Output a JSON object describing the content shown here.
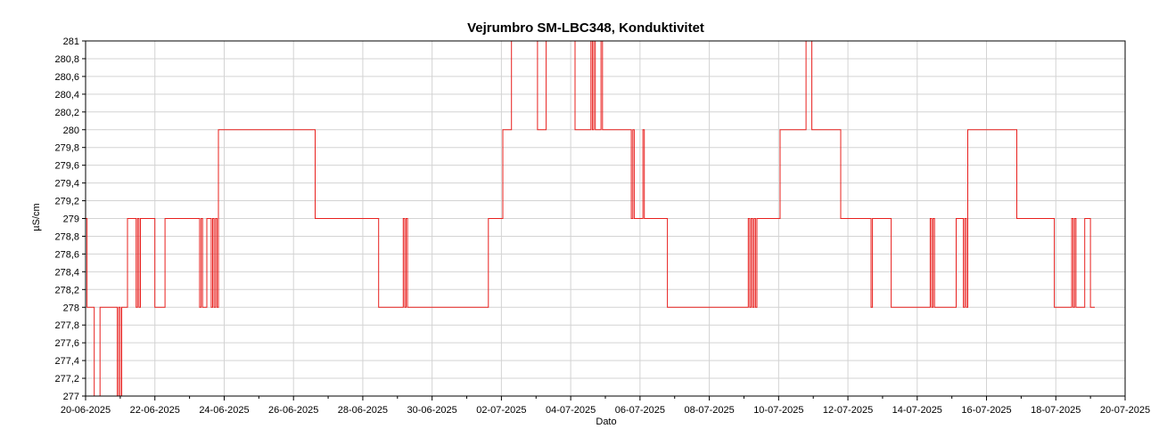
{
  "chart_data": {
    "type": "line",
    "title": "Vejrumbro SM-LBC348, Konduktivitet",
    "xlabel": "Dato",
    "ylabel": "µS/cm",
    "ylim": [
      277,
      281
    ],
    "xlim": [
      "2025-06-20T00:00",
      "2025-07-20T00:00"
    ],
    "x_ticks": [
      "20-06-2025",
      "22-06-2025",
      "24-06-2025",
      "26-06-2025",
      "28-06-2025",
      "30-06-2025",
      "02-07-2025",
      "04-07-2025",
      "06-07-2025",
      "08-07-2025",
      "10-07-2025",
      "12-07-2025",
      "14-07-2025",
      "16-07-2025",
      "18-07-2025",
      "20-07-2025"
    ],
    "y_ticks": [
      "277",
      "277,2",
      "277,4",
      "277,6",
      "277,8",
      "278",
      "278,2",
      "278,4",
      "278,6",
      "278,8",
      "279",
      "279,2",
      "279,4",
      "279,6",
      "279,8",
      "280",
      "280,2",
      "280,4",
      "280,6",
      "280,8",
      "281"
    ],
    "grid": true,
    "colors": {
      "series": "#e8201e",
      "grid": "#d3d3d3",
      "axis": "#000000"
    },
    "series": [
      {
        "points": [
          [
            "2025-06-20T00:00",
            279
          ],
          [
            "2025-06-20T01:00",
            278
          ],
          [
            "2025-06-20T05:00",
            278
          ],
          [
            "2025-06-20T06:00",
            277
          ],
          [
            "2025-06-20T09:00",
            277
          ],
          [
            "2025-06-20T10:00",
            278
          ],
          [
            "2025-06-20T21:00",
            278
          ],
          [
            "2025-06-20T22:00",
            277
          ],
          [
            "2025-06-20T23:00",
            278
          ],
          [
            "2025-06-21T00:00",
            277
          ],
          [
            "2025-06-21T01:00",
            278
          ],
          [
            "2025-06-21T04:00",
            278
          ],
          [
            "2025-06-21T05:00",
            279
          ],
          [
            "2025-06-21T10:00",
            279
          ],
          [
            "2025-06-21T11:00",
            278
          ],
          [
            "2025-06-21T12:00",
            279
          ],
          [
            "2025-06-21T13:00",
            278
          ],
          [
            "2025-06-21T14:00",
            279
          ],
          [
            "2025-06-21T23:00",
            279
          ],
          [
            "2025-06-22T00:00",
            278
          ],
          [
            "2025-06-22T06:00",
            278
          ],
          [
            "2025-06-22T07:00",
            279
          ],
          [
            "2025-06-23T06:00",
            279
          ],
          [
            "2025-06-23T07:00",
            278
          ],
          [
            "2025-06-23T08:00",
            279
          ],
          [
            "2025-06-23T09:00",
            278
          ],
          [
            "2025-06-23T11:00",
            278
          ],
          [
            "2025-06-23T12:00",
            279
          ],
          [
            "2025-06-23T14:00",
            279
          ],
          [
            "2025-06-23T15:00",
            278
          ],
          [
            "2025-06-23T16:00",
            279
          ],
          [
            "2025-06-23T17:00",
            278
          ],
          [
            "2025-06-23T18:00",
            279
          ],
          [
            "2025-06-23T19:00",
            278
          ],
          [
            "2025-06-23T20:00",
            280
          ],
          [
            "2025-06-26T14:00",
            280
          ],
          [
            "2025-06-26T15:00",
            279
          ],
          [
            "2025-06-28T10:00",
            279
          ],
          [
            "2025-06-28T11:00",
            278
          ],
          [
            "2025-06-29T03:00",
            278
          ],
          [
            "2025-06-29T04:00",
            279
          ],
          [
            "2025-06-29T05:00",
            278
          ],
          [
            "2025-06-29T06:00",
            279
          ],
          [
            "2025-06-29T07:00",
            278
          ],
          [
            "2025-07-01T14:00",
            278
          ],
          [
            "2025-07-01T15:00",
            279
          ],
          [
            "2025-07-02T00:00",
            279
          ],
          [
            "2025-07-02T01:00",
            280
          ],
          [
            "2025-07-02T06:00",
            280
          ],
          [
            "2025-07-02T07:00",
            281
          ],
          [
            "2025-07-03T00:00",
            281
          ],
          [
            "2025-07-03T01:00",
            280
          ],
          [
            "2025-07-03T06:00",
            280
          ],
          [
            "2025-07-03T07:00",
            281
          ],
          [
            "2025-07-04T02:00",
            281
          ],
          [
            "2025-07-04T03:00",
            280
          ],
          [
            "2025-07-04T13:00",
            280
          ],
          [
            "2025-07-04T14:00",
            281
          ],
          [
            "2025-07-04T15:00",
            280
          ],
          [
            "2025-07-04T16:00",
            281
          ],
          [
            "2025-07-04T17:00",
            280
          ],
          [
            "2025-07-04T20:00",
            280
          ],
          [
            "2025-07-04T21:00",
            281
          ],
          [
            "2025-07-04T22:00",
            280
          ],
          [
            "2025-07-05T17:00",
            280
          ],
          [
            "2025-07-05T18:00",
            279
          ],
          [
            "2025-07-05T19:00",
            280
          ],
          [
            "2025-07-05T20:00",
            279
          ],
          [
            "2025-07-06T01:00",
            279
          ],
          [
            "2025-07-06T02:00",
            280
          ],
          [
            "2025-07-06T03:00",
            279
          ],
          [
            "2025-07-06T18:00",
            279
          ],
          [
            "2025-07-06T19:00",
            278
          ],
          [
            "2025-07-09T02:00",
            278
          ],
          [
            "2025-07-09T03:00",
            279
          ],
          [
            "2025-07-09T04:00",
            278
          ],
          [
            "2025-07-09T05:00",
            279
          ],
          [
            "2025-07-09T06:00",
            278
          ],
          [
            "2025-07-09T07:00",
            279
          ],
          [
            "2025-07-09T08:00",
            278
          ],
          [
            "2025-07-09T09:00",
            279
          ],
          [
            "2025-07-10T00:00",
            279
          ],
          [
            "2025-07-10T01:00",
            280
          ],
          [
            "2025-07-10T18:00",
            280
          ],
          [
            "2025-07-10T19:00",
            281
          ],
          [
            "2025-07-10T22:00",
            281
          ],
          [
            "2025-07-10T23:00",
            280
          ],
          [
            "2025-07-11T18:00",
            280
          ],
          [
            "2025-07-11T19:00",
            279
          ],
          [
            "2025-07-12T15:00",
            279
          ],
          [
            "2025-07-12T16:00",
            278
          ],
          [
            "2025-07-12T17:00",
            279
          ],
          [
            "2025-07-13T05:00",
            279
          ],
          [
            "2025-07-13T06:00",
            278
          ],
          [
            "2025-07-14T08:00",
            278
          ],
          [
            "2025-07-14T09:00",
            279
          ],
          [
            "2025-07-14T10:00",
            278
          ],
          [
            "2025-07-14T11:00",
            279
          ],
          [
            "2025-07-14T12:00",
            278
          ],
          [
            "2025-07-15T02:00",
            278
          ],
          [
            "2025-07-15T03:00",
            279
          ],
          [
            "2025-07-15T07:00",
            279
          ],
          [
            "2025-07-15T08:00",
            278
          ],
          [
            "2025-07-15T09:00",
            279
          ],
          [
            "2025-07-15T10:00",
            278
          ],
          [
            "2025-07-15T11:00",
            280
          ],
          [
            "2025-07-16T20:00",
            280
          ],
          [
            "2025-07-16T21:00",
            279
          ],
          [
            "2025-07-17T22:00",
            279
          ],
          [
            "2025-07-17T23:00",
            278
          ],
          [
            "2025-07-18T10:00",
            278
          ],
          [
            "2025-07-18T11:00",
            279
          ],
          [
            "2025-07-18T12:00",
            278
          ],
          [
            "2025-07-18T13:00",
            279
          ],
          [
            "2025-07-18T14:00",
            278
          ],
          [
            "2025-07-18T19:00",
            278
          ],
          [
            "2025-07-18T20:00",
            279
          ],
          [
            "2025-07-18T23:00",
            279
          ],
          [
            "2025-07-19T00:00",
            278
          ],
          [
            "2025-07-19T03:00",
            278
          ]
        ]
      }
    ]
  }
}
